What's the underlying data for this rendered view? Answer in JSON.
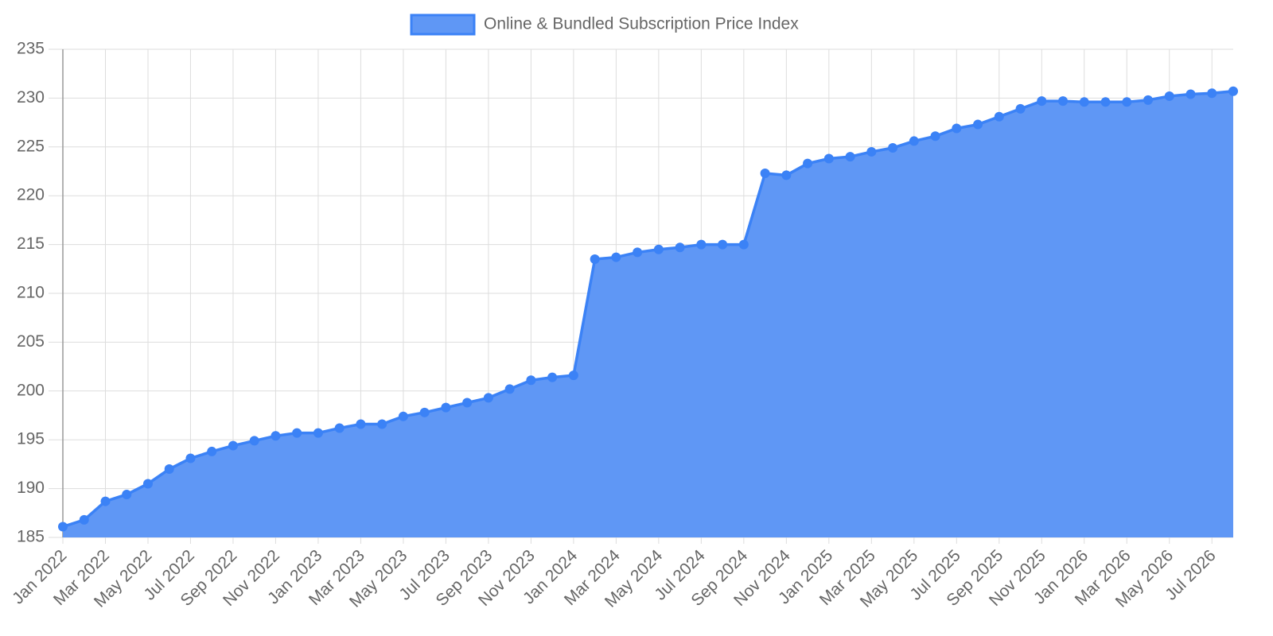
{
  "chart_data": {
    "type": "line",
    "categories": [
      "Jan 2022",
      null,
      "Mar 2022",
      null,
      "May 2022",
      null,
      "Jul 2022",
      null,
      "Sep 2022",
      null,
      "Nov 2022",
      null,
      "Jan 2023",
      null,
      "Mar 2023",
      null,
      "May 2023",
      null,
      "Jul 2023",
      null,
      "Sep 2023",
      null,
      "Nov 2023",
      null,
      "Jan 2024",
      null,
      "Mar 2024",
      null,
      "May 2024",
      null,
      "Jul 2024",
      null,
      "Sep 2024",
      null,
      "Nov 2024",
      null,
      "Jan 2025",
      null,
      "Mar 2025",
      null,
      "May 2025",
      null,
      "Jul 2025",
      null,
      "Sep 2025",
      null,
      "Nov 2025",
      null,
      "Jan 2026",
      null,
      "Mar 2026",
      null,
      "May 2026",
      null,
      "Jul 2026",
      null
    ],
    "series": [
      {
        "name": "Online & Bundled Subscription Price Index",
        "color": "#3b82f6",
        "fill": "#5f97f5",
        "values": [
          186.1,
          186.8,
          188.7,
          189.4,
          190.5,
          192.0,
          193.1,
          193.8,
          194.4,
          194.9,
          195.4,
          195.7,
          195.7,
          196.2,
          196.6,
          196.6,
          197.4,
          197.8,
          198.3,
          198.8,
          199.3,
          200.2,
          201.1,
          201.4,
          201.6,
          213.5,
          213.7,
          214.2,
          214.5,
          214.7,
          215.0,
          215.0,
          215.0,
          222.3,
          222.1,
          223.3,
          223.8,
          224.0,
          224.5,
          224.9,
          225.6,
          226.1,
          226.9,
          227.3,
          228.1,
          228.9,
          229.7,
          229.7,
          229.6,
          229.6,
          229.6,
          229.8,
          230.2,
          230.4,
          230.5,
          230.7
        ]
      }
    ],
    "ylim": [
      185,
      235
    ],
    "yticks": [
      185,
      190,
      195,
      200,
      205,
      210,
      215,
      220,
      225,
      230,
      235
    ],
    "grid": true,
    "legend": "top"
  }
}
